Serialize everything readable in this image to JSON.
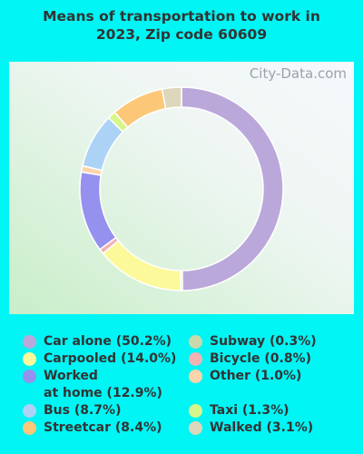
{
  "chart_data": {
    "type": "donut",
    "title": "Means of transportation to work in\n2023, Zip code 60609",
    "watermark": "City-Data.com",
    "categories": [
      "Car alone (50.2%)",
      "Subway (0.3%)",
      "Carpooled (14.0%)",
      "Bicycle (0.8%)",
      "Worked\nat home (12.9%)",
      "Other (1.0%)",
      "Bus (8.7%)",
      "Taxi (1.3%)",
      "Streetcar (8.4%)",
      "Walked (3.1%)"
    ],
    "values": [
      50.2,
      0.3,
      14.0,
      0.8,
      12.9,
      1.0,
      8.7,
      1.3,
      8.4,
      3.1
    ],
    "colors": [
      "#bba8da",
      "#c9d9aa",
      "#fbf999",
      "#f2b3b3",
      "#9591ee",
      "#fcd5ac",
      "#acd2f6",
      "#d7f68a",
      "#fcc878",
      "#ddd7bb"
    ]
  }
}
